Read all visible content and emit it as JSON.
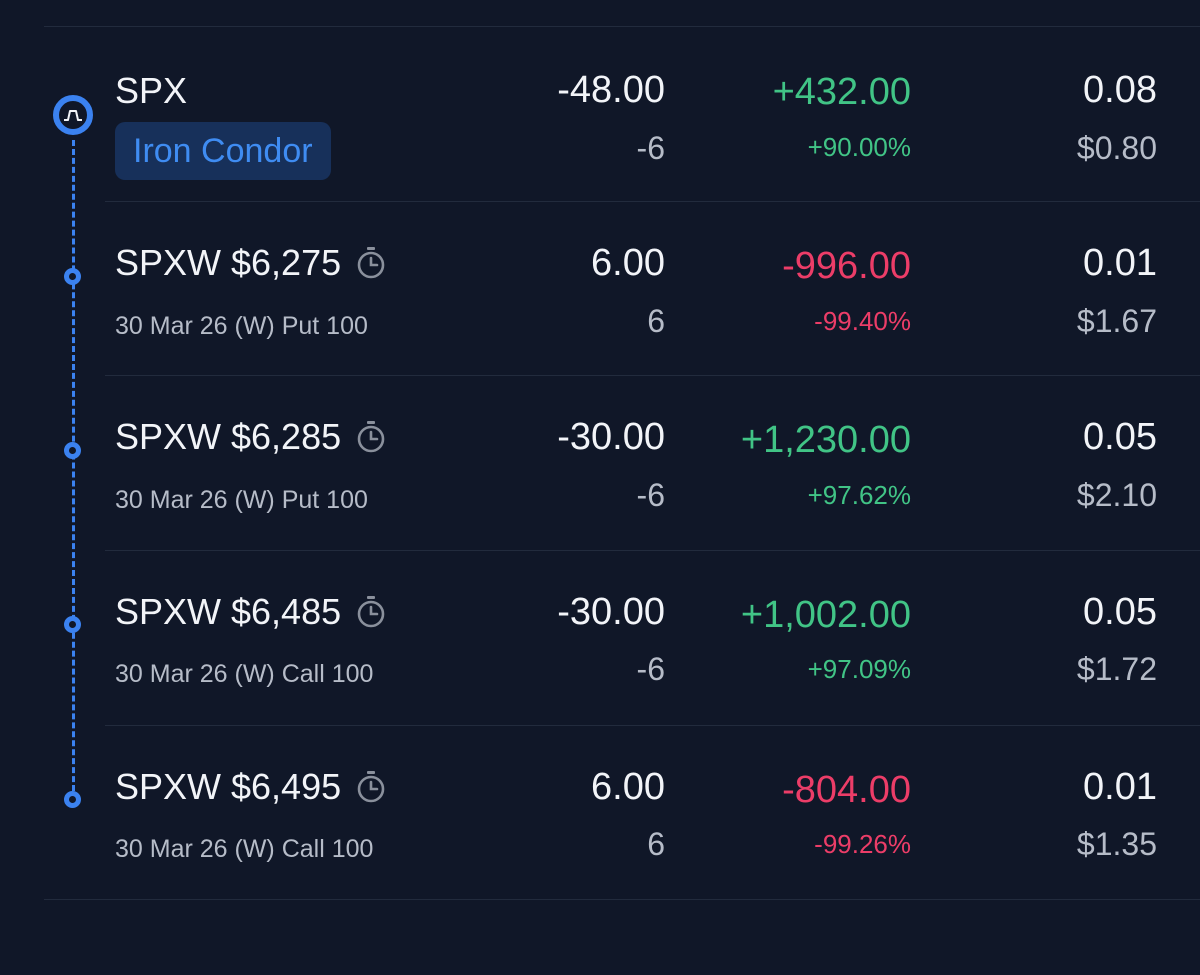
{
  "colors": {
    "background": "#101728",
    "accent": "#3b82f0",
    "positive": "#41c486",
    "negative": "#ec3d68",
    "badge_bg": "#17305a",
    "badge_text": "#3f8cf2"
  },
  "strategy": {
    "symbol": "SPX",
    "badge": "Iron Condor",
    "icon": "iron-condor-icon",
    "quantity": "-48.00",
    "contracts": "-6",
    "pl": "+432.00",
    "pl_percent": "+90.00%",
    "pl_direction": "positive",
    "price": "0.08",
    "value": "$0.80"
  },
  "legs": [
    {
      "symbol": "SPXW $6,275",
      "icon": "timer-icon",
      "detail": "30 Mar 26 (W) Put 100",
      "quantity": "6.00",
      "contracts": "6",
      "pl": "-996.00",
      "pl_percent": "-99.40%",
      "pl_direction": "negative",
      "price": "0.01",
      "value": "$1.67"
    },
    {
      "symbol": "SPXW $6,285",
      "icon": "timer-icon",
      "detail": "30 Mar 26 (W) Put 100",
      "quantity": "-30.00",
      "contracts": "-6",
      "pl": "+1,230.00",
      "pl_percent": "+97.62%",
      "pl_direction": "positive",
      "price": "0.05",
      "value": "$2.10"
    },
    {
      "symbol": "SPXW $6,485",
      "icon": "timer-icon",
      "detail": "30 Mar 26 (W) Call 100",
      "quantity": "-30.00",
      "contracts": "-6",
      "pl": "+1,002.00",
      "pl_percent": "+97.09%",
      "pl_direction": "positive",
      "price": "0.05",
      "value": "$1.72"
    },
    {
      "symbol": "SPXW $6,495",
      "icon": "timer-icon",
      "detail": "30 Mar 26 (W) Call 100",
      "quantity": "6.00",
      "contracts": "6",
      "pl": "-804.00",
      "pl_percent": "-99.26%",
      "pl_direction": "negative",
      "price": "0.01",
      "value": "$1.35"
    }
  ]
}
